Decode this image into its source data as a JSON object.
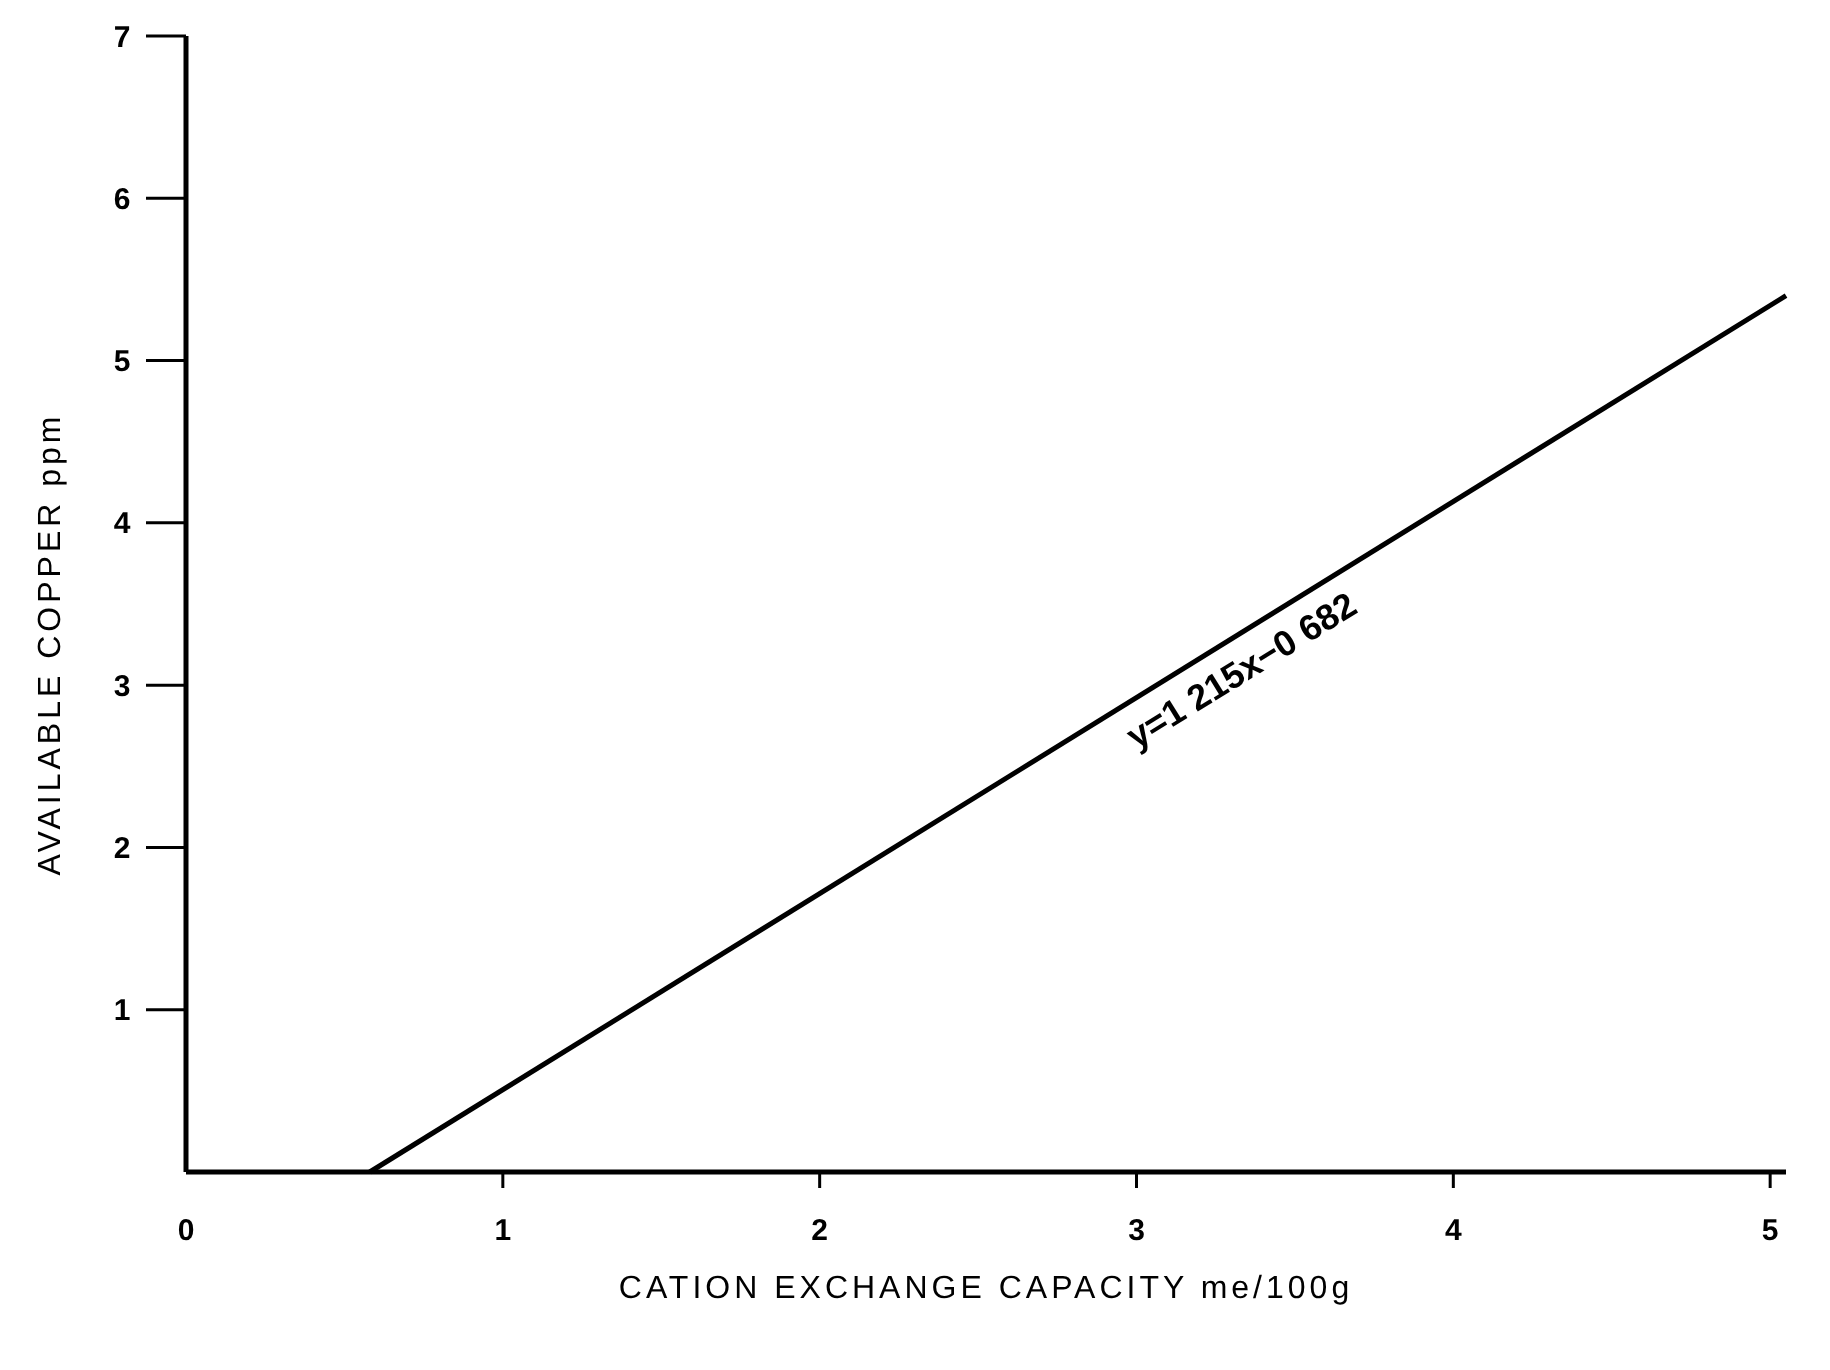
{
  "chart_data": {
    "type": "line",
    "xlabel": "CATION EXCHANGE CAPACITY me/100g",
    "ylabel": "AVAILABLE COPPER ppm",
    "x": [
      0.58,
      5.05
    ],
    "series": [
      {
        "color": "#000000",
        "values": [
          0,
          5.4
        ]
      }
    ],
    "xlim": [
      0,
      5.05
    ],
    "ylim": [
      0,
      7
    ],
    "xticks": [
      0,
      1,
      2,
      3,
      4,
      5
    ],
    "yticks": [
      1,
      2,
      3,
      4,
      5,
      6,
      7
    ],
    "annotations": [
      "y=1 215x−0 682"
    ],
    "grid": false,
    "marker": "none",
    "line_style": "solid"
  }
}
